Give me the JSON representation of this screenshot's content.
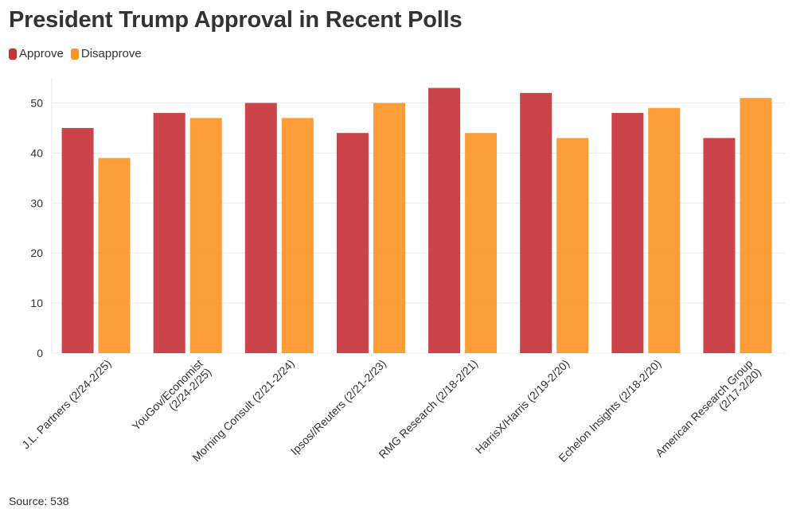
{
  "chart_data": {
    "type": "bar",
    "title": "President Trump Approval in Recent Polls",
    "categories": [
      [
        "J.L. Partners (2/24-2/25)"
      ],
      [
        "YouGov/Economist",
        "(2/24-2/25)"
      ],
      [
        "Morning Consult (2/21-2/24)"
      ],
      [
        "Ipsos//Reuters (2/21-2/23)"
      ],
      [
        "RMG Research (2/18-2/21)"
      ],
      [
        "HarrisX/Harris (2/19-2/20)"
      ],
      [
        "Echelon Insights (2/18-2/20)"
      ],
      [
        "American Research Group",
        "(2/17-2/20)"
      ]
    ],
    "series": [
      {
        "name": "Approve",
        "color": "#c6343a",
        "values": [
          45,
          48,
          50,
          44,
          53,
          52,
          48,
          43
        ]
      },
      {
        "name": "Disapprove",
        "color": "#fd9526",
        "values": [
          39,
          47,
          47,
          50,
          44,
          43,
          49,
          51
        ]
      }
    ],
    "yticks": [
      0,
      10,
      20,
      30,
      40,
      50
    ],
    "ylim": [
      0,
      55
    ],
    "xlabel": "",
    "ylabel": "",
    "grid": true,
    "legend": "top-left"
  },
  "source": "Source: 538"
}
